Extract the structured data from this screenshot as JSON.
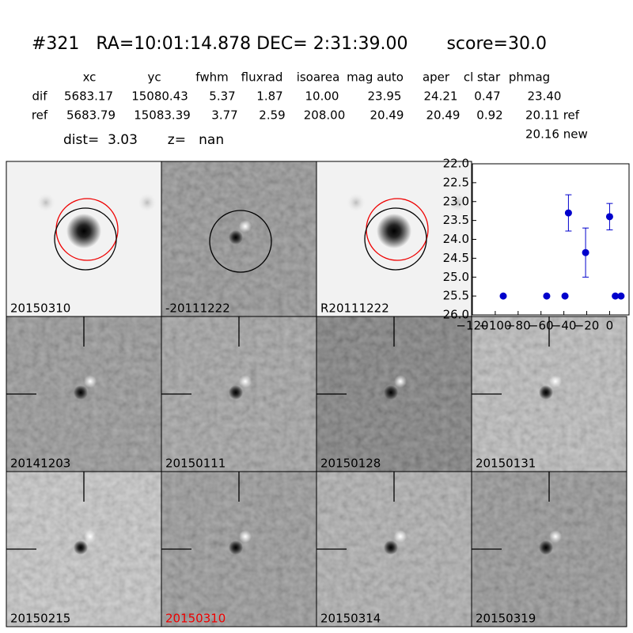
{
  "header": {
    "title": "#321   RA=10:01:14.878 DEC= 2:31:39.00       score=30.0",
    "dist": "dist=  3.03       z=   nan"
  },
  "table": {
    "columns": [
      "xc",
      "yc",
      "fwhm",
      "fluxrad",
      "isoarea",
      "mag auto",
      "aper",
      "cl star",
      "phmag"
    ],
    "rows": [
      [
        "dif",
        "5683.17",
        "15080.43",
        "5.37",
        "1.87",
        "10.00",
        "23.95",
        "24.21",
        "0.47",
        "23.40"
      ],
      [
        "ref",
        "5683.79",
        "15083.39",
        "3.77",
        "2.59",
        "208.00",
        "20.49",
        "20.49",
        "0.92",
        "20.11 ref"
      ]
    ],
    "extra": "20.16 new"
  },
  "panels": [
    {
      "label": "20150310"
    },
    {
      "label": "-20111222"
    },
    {
      "label": "R20111222"
    },
    {
      "label": "20141203"
    },
    {
      "label": "20150111"
    },
    {
      "label": "20150128"
    },
    {
      "label": "20150131"
    },
    {
      "label": "20150215"
    },
    {
      "label": "20150310"
    },
    {
      "label": "20150314"
    },
    {
      "label": "20150319"
    }
  ],
  "chart_data": {
    "type": "scatter",
    "color": "#0000cc",
    "x": [
      -93,
      -55,
      -39,
      -36,
      -21,
      0,
      5,
      10
    ],
    "values": [
      25.5,
      25.5,
      25.5,
      23.3,
      24.35,
      23.4,
      25.5,
      25.5
    ],
    "errors": [
      null,
      null,
      null,
      0.48,
      0.65,
      0.35,
      null,
      null
    ],
    "xlim": [
      -120,
      17
    ],
    "ylim": [
      26,
      22
    ],
    "xticks": [
      {
        "value": -120,
        "label": "−120"
      },
      {
        "value": -100,
        "label": "−100"
      },
      {
        "value": -80,
        "label": "−80"
      },
      {
        "value": -60,
        "label": "−60"
      },
      {
        "value": -40,
        "label": "−40"
      },
      {
        "value": -20,
        "label": "−20"
      },
      0
    ],
    "yticks": [
      {
        "value": 22,
        "label": "22.0"
      },
      {
        "value": 22.5,
        "label": "22.5"
      },
      {
        "value": 23,
        "label": "23.0"
      },
      {
        "value": 23.5,
        "label": "23.5"
      },
      {
        "value": 24,
        "label": "24.0"
      },
      {
        "value": 24.5,
        "label": "24.5"
      },
      {
        "value": 25,
        "label": "25.0"
      },
      {
        "value": 25.5,
        "label": "25.5"
      },
      {
        "value": 26,
        "label": "26.0"
      }
    ]
  }
}
